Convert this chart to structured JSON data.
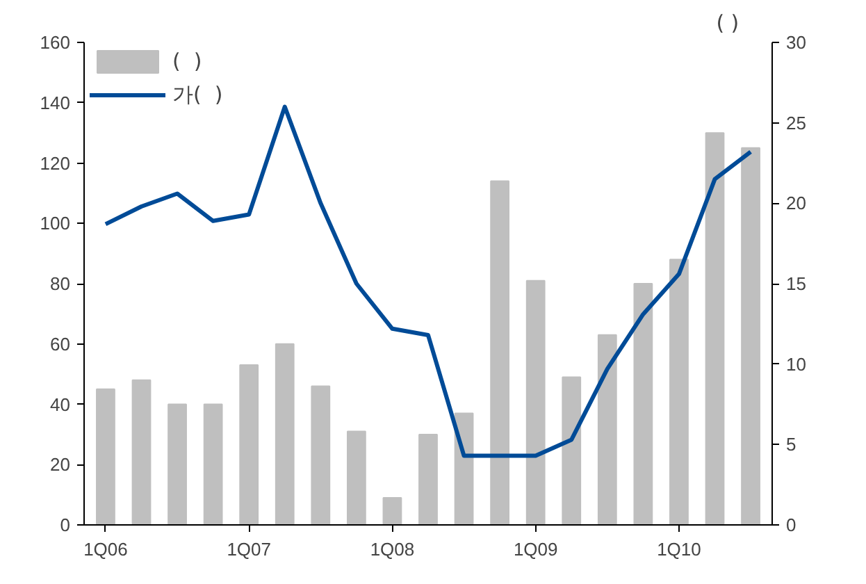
{
  "chart_data": {
    "type": "bar",
    "categories": [
      "1Q06",
      null,
      null,
      null,
      "1Q07",
      null,
      null,
      null,
      "1Q08",
      null,
      null,
      null,
      "1Q09",
      null,
      null,
      null,
      "1Q10",
      null,
      null
    ],
    "series": [
      {
        "name": "(  )",
        "color": "#bfbfbf",
        "values": [
          45,
          48,
          40,
          40,
          53,
          60,
          46,
          31,
          9,
          30,
          37,
          114,
          81,
          49,
          63,
          80,
          88,
          130,
          125
        ]
      },
      {
        "name": "가(  )",
        "type": "line",
        "axis": "y2",
        "color": "#004b97",
        "values": [
          18.7,
          19.8,
          20.6,
          18.9,
          19.3,
          26,
          20,
          15,
          12.2,
          11.8,
          4.3,
          4.3,
          4.3,
          5.3,
          9.7,
          13.1,
          15.6,
          21.5,
          23.2
        ]
      }
    ],
    "y2label": "(      )",
    "ylim": [
      0,
      160
    ],
    "yticks": [
      0,
      20,
      40,
      60,
      80,
      100,
      120,
      140,
      160
    ],
    "y2lim": [
      0,
      30
    ],
    "y2ticks": [
      0,
      5,
      10,
      15,
      20,
      25,
      30
    ],
    "grid": false,
    "legend": "top left",
    "marker": "none",
    "line_style": "solid"
  }
}
